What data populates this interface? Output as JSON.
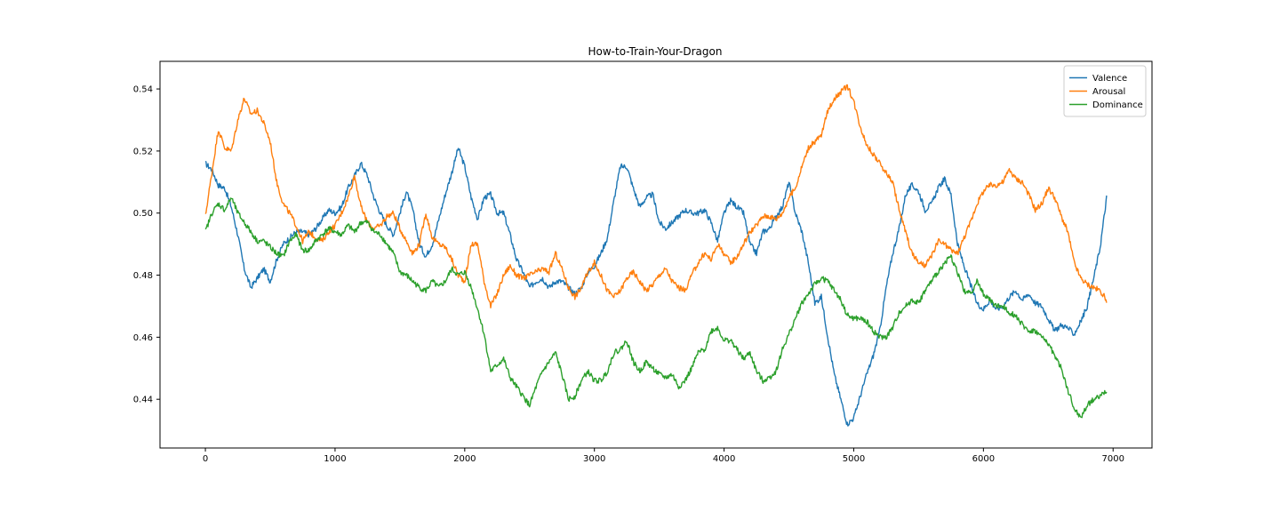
{
  "chart_data": {
    "type": "line",
    "title": "How-to-Train-Your-Dragon",
    "xlabel": "",
    "ylabel": "",
    "xlim": [
      -350,
      7300
    ],
    "ylim": [
      0.4243,
      0.5489
    ],
    "xticks": [
      0,
      1000,
      2000,
      3000,
      4000,
      5000,
      6000,
      7000
    ],
    "xtick_labels": [
      "0",
      "1000",
      "2000",
      "3000",
      "4000",
      "5000",
      "6000",
      "7000"
    ],
    "yticks": [
      0.44,
      0.46,
      0.48,
      0.5,
      0.52,
      0.54
    ],
    "ytick_labels": [
      "0.44",
      "0.46",
      "0.48",
      "0.50",
      "0.52",
      "0.54"
    ],
    "grid": false,
    "legend_position": "upper right",
    "series": [
      {
        "name": "Valence",
        "color": "#1f77b4",
        "x": [
          0,
          50,
          100,
          150,
          200,
          250,
          300,
          350,
          400,
          450,
          500,
          550,
          600,
          650,
          700,
          750,
          800,
          850,
          900,
          950,
          1000,
          1050,
          1100,
          1150,
          1200,
          1250,
          1300,
          1350,
          1400,
          1450,
          1500,
          1550,
          1600,
          1650,
          1700,
          1750,
          1800,
          1850,
          1900,
          1950,
          2000,
          2050,
          2100,
          2150,
          2200,
          2250,
          2300,
          2350,
          2400,
          2450,
          2500,
          2550,
          2600,
          2650,
          2700,
          2750,
          2800,
          2850,
          2900,
          2950,
          3000,
          3050,
          3100,
          3150,
          3200,
          3250,
          3300,
          3350,
          3400,
          3450,
          3500,
          3550,
          3600,
          3650,
          3700,
          3750,
          3800,
          3850,
          3900,
          3950,
          4000,
          4050,
          4100,
          4150,
          4200,
          4250,
          4300,
          4350,
          4400,
          4450,
          4500,
          4550,
          4600,
          4650,
          4700,
          4750,
          4800,
          4850,
          4900,
          4950,
          5000,
          5050,
          5100,
          5150,
          5200,
          5250,
          5300,
          5350,
          5400,
          5450,
          5500,
          5550,
          5600,
          5650,
          5700,
          5750,
          5800,
          5850,
          5900,
          5950,
          6000,
          6050,
          6100,
          6150,
          6200,
          6250,
          6300,
          6350,
          6400,
          6450,
          6500,
          6550,
          6600,
          6650,
          6700,
          6750,
          6800,
          6850,
          6900,
          6950
        ],
        "values": [
          0.516,
          0.514,
          0.509,
          0.508,
          0.502,
          0.493,
          0.482,
          0.476,
          0.479,
          0.482,
          0.478,
          0.485,
          0.49,
          0.492,
          0.494,
          0.494,
          0.493,
          0.495,
          0.498,
          0.501,
          0.5,
          0.502,
          0.508,
          0.512,
          0.516,
          0.512,
          0.505,
          0.5,
          0.496,
          0.493,
          0.5,
          0.507,
          0.501,
          0.49,
          0.486,
          0.49,
          0.498,
          0.506,
          0.513,
          0.521,
          0.515,
          0.505,
          0.498,
          0.505,
          0.506,
          0.5,
          0.5,
          0.493,
          0.485,
          0.481,
          0.476,
          0.478,
          0.479,
          0.476,
          0.478,
          0.478,
          0.476,
          0.474,
          0.476,
          0.481,
          0.483,
          0.487,
          0.492,
          0.504,
          0.515,
          0.515,
          0.508,
          0.502,
          0.505,
          0.506,
          0.497,
          0.495,
          0.497,
          0.499,
          0.501,
          0.5,
          0.5,
          0.501,
          0.497,
          0.491,
          0.5,
          0.504,
          0.502,
          0.5,
          0.49,
          0.487,
          0.494,
          0.495,
          0.499,
          0.502,
          0.51,
          0.5,
          0.494,
          0.484,
          0.471,
          0.473,
          0.46,
          0.448,
          0.44,
          0.432,
          0.434,
          0.441,
          0.448,
          0.454,
          0.462,
          0.476,
          0.487,
          0.495,
          0.506,
          0.509,
          0.507,
          0.501,
          0.503,
          0.508,
          0.511,
          0.506,
          0.49,
          0.483,
          0.477,
          0.471,
          0.469,
          0.472,
          0.469,
          0.47,
          0.473,
          0.475,
          0.472,
          0.474,
          0.471,
          0.47,
          0.466,
          0.462,
          0.464,
          0.463,
          0.461,
          0.465,
          0.47,
          0.479,
          0.489,
          0.505
        ]
      },
      {
        "name": "Arousal",
        "color": "#ff7f0e",
        "x": [
          0,
          50,
          100,
          150,
          200,
          250,
          300,
          350,
          400,
          450,
          500,
          550,
          600,
          650,
          700,
          750,
          800,
          850,
          900,
          950,
          1000,
          1050,
          1100,
          1150,
          1200,
          1250,
          1300,
          1350,
          1400,
          1450,
          1500,
          1550,
          1600,
          1650,
          1700,
          1750,
          1800,
          1850,
          1900,
          1950,
          2000,
          2050,
          2100,
          2150,
          2200,
          2250,
          2300,
          2350,
          2400,
          2450,
          2500,
          2550,
          2600,
          2650,
          2700,
          2750,
          2800,
          2850,
          2900,
          2950,
          3000,
          3050,
          3100,
          3150,
          3200,
          3250,
          3300,
          3350,
          3400,
          3450,
          3500,
          3550,
          3600,
          3650,
          3700,
          3750,
          3800,
          3850,
          3900,
          3950,
          4000,
          4050,
          4100,
          4150,
          4200,
          4250,
          4300,
          4350,
          4400,
          4450,
          4500,
          4550,
          4600,
          4650,
          4700,
          4750,
          4800,
          4850,
          4900,
          4950,
          5000,
          5050,
          5100,
          5150,
          5200,
          5250,
          5300,
          5350,
          5400,
          5450,
          5500,
          5550,
          5600,
          5650,
          5700,
          5750,
          5800,
          5850,
          5900,
          5950,
          6000,
          6050,
          6100,
          6150,
          6200,
          6250,
          6300,
          6350,
          6400,
          6450,
          6500,
          6550,
          6600,
          6650,
          6700,
          6750,
          6800,
          6850,
          6900,
          6950
        ],
        "values": [
          0.499,
          0.513,
          0.527,
          0.521,
          0.52,
          0.53,
          0.537,
          0.532,
          0.533,
          0.529,
          0.523,
          0.51,
          0.503,
          0.5,
          0.496,
          0.491,
          0.494,
          0.492,
          0.491,
          0.494,
          0.496,
          0.5,
          0.505,
          0.512,
          0.502,
          0.497,
          0.495,
          0.496,
          0.499,
          0.5,
          0.495,
          0.491,
          0.487,
          0.49,
          0.5,
          0.492,
          0.49,
          0.489,
          0.485,
          0.48,
          0.478,
          0.49,
          0.49,
          0.478,
          0.47,
          0.474,
          0.48,
          0.483,
          0.48,
          0.479,
          0.48,
          0.481,
          0.482,
          0.481,
          0.487,
          0.482,
          0.476,
          0.473,
          0.476,
          0.481,
          0.484,
          0.48,
          0.475,
          0.473,
          0.475,
          0.479,
          0.481,
          0.478,
          0.475,
          0.477,
          0.48,
          0.482,
          0.478,
          0.476,
          0.475,
          0.48,
          0.484,
          0.487,
          0.485,
          0.49,
          0.487,
          0.484,
          0.486,
          0.49,
          0.494,
          0.496,
          0.499,
          0.499,
          0.498,
          0.5,
          0.505,
          0.508,
          0.515,
          0.521,
          0.523,
          0.525,
          0.533,
          0.537,
          0.539,
          0.541,
          0.536,
          0.528,
          0.522,
          0.519,
          0.516,
          0.513,
          0.51,
          0.501,
          0.494,
          0.487,
          0.484,
          0.483,
          0.486,
          0.491,
          0.49,
          0.488,
          0.487,
          0.492,
          0.497,
          0.503,
          0.507,
          0.509,
          0.509,
          0.51,
          0.514,
          0.511,
          0.51,
          0.506,
          0.501,
          0.503,
          0.508,
          0.505,
          0.499,
          0.494,
          0.484,
          0.479,
          0.477,
          0.476,
          0.475,
          0.472
        ]
      },
      {
        "name": "Dominance",
        "color": "#2ca02c",
        "x": [
          0,
          50,
          100,
          150,
          200,
          250,
          300,
          350,
          400,
          450,
          500,
          550,
          600,
          650,
          700,
          750,
          800,
          850,
          900,
          950,
          1000,
          1050,
          1100,
          1150,
          1200,
          1250,
          1300,
          1350,
          1400,
          1450,
          1500,
          1550,
          1600,
          1650,
          1700,
          1750,
          1800,
          1850,
          1900,
          1950,
          2000,
          2050,
          2100,
          2150,
          2200,
          2250,
          2300,
          2350,
          2400,
          2450,
          2500,
          2550,
          2600,
          2650,
          2700,
          2750,
          2800,
          2850,
          2900,
          2950,
          3000,
          3050,
          3100,
          3150,
          3200,
          3250,
          3300,
          3350,
          3400,
          3450,
          3500,
          3550,
          3600,
          3650,
          3700,
          3750,
          3800,
          3850,
          3900,
          3950,
          4000,
          4050,
          4100,
          4150,
          4200,
          4250,
          4300,
          4350,
          4400,
          4450,
          4500,
          4550,
          4600,
          4650,
          4700,
          4750,
          4800,
          4850,
          4900,
          4950,
          5000,
          5050,
          5100,
          5150,
          5200,
          5250,
          5300,
          5350,
          5400,
          5450,
          5500,
          5550,
          5600,
          5650,
          5700,
          5750,
          5800,
          5850,
          5900,
          5950,
          6000,
          6050,
          6100,
          6150,
          6200,
          6250,
          6300,
          6350,
          6400,
          6450,
          6500,
          6550,
          6600,
          6650,
          6700,
          6750,
          6800,
          6850,
          6900,
          6950
        ],
        "values": [
          0.494,
          0.5,
          0.503,
          0.501,
          0.505,
          0.5,
          0.497,
          0.494,
          0.491,
          0.491,
          0.489,
          0.487,
          0.486,
          0.491,
          0.493,
          0.488,
          0.488,
          0.491,
          0.493,
          0.495,
          0.494,
          0.493,
          0.496,
          0.494,
          0.497,
          0.497,
          0.494,
          0.493,
          0.49,
          0.487,
          0.481,
          0.48,
          0.478,
          0.476,
          0.475,
          0.478,
          0.476,
          0.478,
          0.482,
          0.48,
          0.481,
          0.476,
          0.469,
          0.461,
          0.449,
          0.451,
          0.453,
          0.447,
          0.444,
          0.441,
          0.438,
          0.444,
          0.449,
          0.452,
          0.455,
          0.448,
          0.44,
          0.441,
          0.446,
          0.449,
          0.446,
          0.446,
          0.449,
          0.455,
          0.456,
          0.459,
          0.452,
          0.449,
          0.452,
          0.45,
          0.448,
          0.447,
          0.448,
          0.444,
          0.446,
          0.45,
          0.455,
          0.456,
          0.462,
          0.463,
          0.459,
          0.459,
          0.456,
          0.453,
          0.455,
          0.449,
          0.446,
          0.447,
          0.449,
          0.456,
          0.461,
          0.466,
          0.471,
          0.474,
          0.477,
          0.479,
          0.478,
          0.475,
          0.472,
          0.467,
          0.466,
          0.466,
          0.465,
          0.462,
          0.46,
          0.46,
          0.463,
          0.468,
          0.47,
          0.472,
          0.471,
          0.475,
          0.478,
          0.481,
          0.484,
          0.486,
          0.481,
          0.475,
          0.474,
          0.478,
          0.474,
          0.472,
          0.47,
          0.47,
          0.468,
          0.467,
          0.464,
          0.462,
          0.462,
          0.46,
          0.458,
          0.454,
          0.45,
          0.443,
          0.437,
          0.434,
          0.438,
          0.44,
          0.441,
          0.443
        ]
      }
    ]
  }
}
